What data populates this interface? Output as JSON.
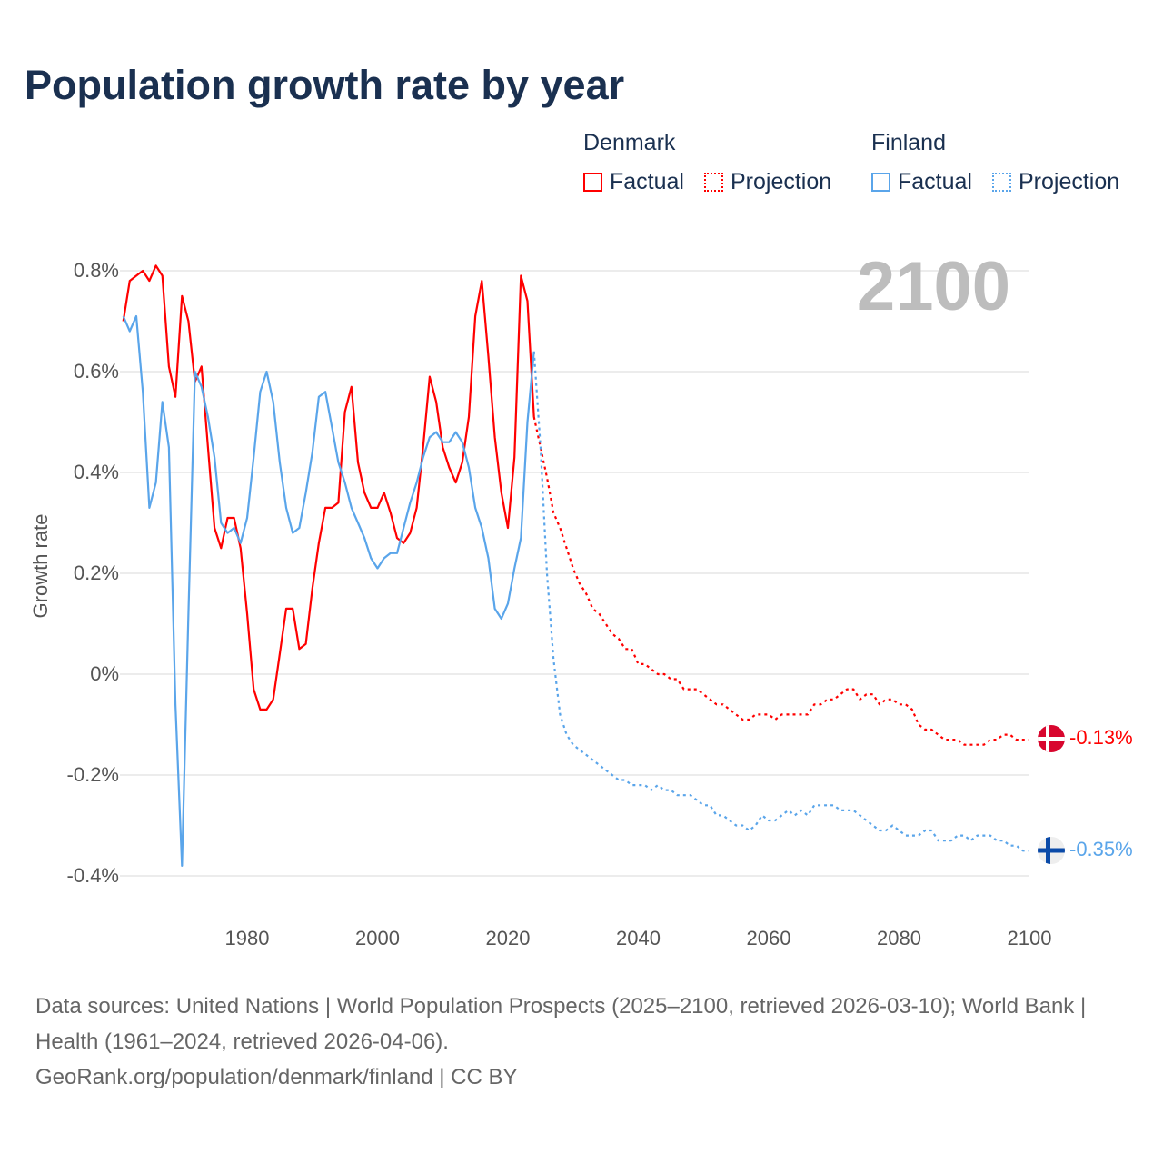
{
  "title": "Population growth rate by year",
  "legend": {
    "groups": [
      {
        "name": "Denmark",
        "factual": "Factual",
        "projection": "Projection",
        "color": "#ff0000"
      },
      {
        "name": "Finland",
        "factual": "Factual",
        "projection": "Projection",
        "color": "#5aa5ea"
      }
    ]
  },
  "current_year": "2100",
  "end_labels": {
    "denmark": "-0.13%",
    "finland": "-0.35%"
  },
  "footer": {
    "sources": "Data sources: United Nations | World Population Prospects (2025–2100, retrieved 2026-03-10); World Bank | Health (1961–2024, retrieved 2026-04-06).",
    "credit": "GeoRank.org/population/denmark/finland | CC BY"
  },
  "chart_data": {
    "type": "line",
    "title": "Population growth rate by year",
    "xlabel": "",
    "ylabel": "Growth rate",
    "xlim": [
      1961,
      2100
    ],
    "ylim": [
      -0.4,
      0.8
    ],
    "x_ticks": [
      "1980",
      "2000",
      "2020",
      "2040",
      "2060",
      "2080",
      "2100"
    ],
    "y_ticks": [
      "0.8%",
      "0.6%",
      "0.4%",
      "0.2%",
      "0%",
      "-0.2%",
      "-0.4%"
    ],
    "grid": true,
    "legend_position": "top-right",
    "series": [
      {
        "name": "Denmark Factual",
        "start_year": 1961,
        "color": "#ff0000",
        "style": "solid",
        "values": [
          0.7,
          0.78,
          0.79,
          0.8,
          0.78,
          0.81,
          0.79,
          0.61,
          0.55,
          0.75,
          0.7,
          0.58,
          0.61,
          0.45,
          0.29,
          0.25,
          0.31,
          0.31,
          0.25,
          0.12,
          -0.03,
          -0.07,
          -0.07,
          -0.05,
          0.04,
          0.13,
          0.13,
          0.05,
          0.06,
          0.17,
          0.26,
          0.33,
          0.33,
          0.34,
          0.52,
          0.57,
          0.42,
          0.36,
          0.33,
          0.33,
          0.36,
          0.32,
          0.27,
          0.26,
          0.28,
          0.33,
          0.45,
          0.59,
          0.54,
          0.45,
          0.41,
          0.38,
          0.42,
          0.51,
          0.71,
          0.78,
          0.63,
          0.47,
          0.36,
          0.29,
          0.43,
          0.79,
          0.74,
          0.51
        ]
      },
      {
        "name": "Finland Factual",
        "start_year": 1961,
        "color": "#5aa5ea",
        "style": "solid",
        "values": [
          0.71,
          0.68,
          0.71,
          0.56,
          0.33,
          0.38,
          0.54,
          0.45,
          -0.06,
          -0.38,
          0.12,
          0.6,
          0.57,
          0.51,
          0.43,
          0.3,
          0.28,
          0.29,
          0.26,
          0.31,
          0.43,
          0.56,
          0.6,
          0.54,
          0.42,
          0.33,
          0.28,
          0.29,
          0.36,
          0.44,
          0.55,
          0.56,
          0.49,
          0.42,
          0.38,
          0.33,
          0.3,
          0.27,
          0.23,
          0.21,
          0.23,
          0.24,
          0.24,
          0.29,
          0.34,
          0.38,
          0.43,
          0.47,
          0.48,
          0.46,
          0.46,
          0.48,
          0.46,
          0.41,
          0.33,
          0.29,
          0.23,
          0.13,
          0.11,
          0.14,
          0.21,
          0.27,
          0.5,
          0.64
        ]
      },
      {
        "name": "Denmark Projection",
        "start_year": 2024,
        "color": "#ff0000",
        "style": "dotted",
        "values": [
          0.51,
          0.45,
          0.39,
          0.32,
          0.29,
          0.25,
          0.21,
          0.18,
          0.16,
          0.13,
          0.12,
          0.1,
          0.08,
          0.07,
          0.05,
          0.05,
          0.02,
          0.02,
          0.01,
          0.0,
          0.0,
          -0.01,
          -0.01,
          -0.03,
          -0.03,
          -0.03,
          -0.04,
          -0.05,
          -0.06,
          -0.06,
          -0.07,
          -0.08,
          -0.09,
          -0.09,
          -0.08,
          -0.08,
          -0.08,
          -0.09,
          -0.08,
          -0.08,
          -0.08,
          -0.08,
          -0.08,
          -0.06,
          -0.06,
          -0.05,
          -0.05,
          -0.04,
          -0.03,
          -0.03,
          -0.05,
          -0.04,
          -0.04,
          -0.06,
          -0.05,
          -0.05,
          -0.06,
          -0.06,
          -0.07,
          -0.1,
          -0.11,
          -0.11,
          -0.12,
          -0.13,
          -0.13,
          -0.13,
          -0.14,
          -0.14,
          -0.14,
          -0.14,
          -0.13,
          -0.13,
          -0.12,
          -0.12,
          -0.13,
          -0.13,
          -0.13
        ]
      },
      {
        "name": "Finland Projection",
        "start_year": 2024,
        "color": "#5aa5ea",
        "style": "dotted",
        "values": [
          0.64,
          0.45,
          0.2,
          0.03,
          -0.08,
          -0.12,
          -0.14,
          -0.15,
          -0.16,
          -0.17,
          -0.18,
          -0.19,
          -0.2,
          -0.21,
          -0.21,
          -0.22,
          -0.22,
          -0.22,
          -0.23,
          -0.22,
          -0.23,
          -0.23,
          -0.24,
          -0.24,
          -0.24,
          -0.25,
          -0.26,
          -0.26,
          -0.28,
          -0.28,
          -0.29,
          -0.3,
          -0.3,
          -0.31,
          -0.3,
          -0.28,
          -0.29,
          -0.29,
          -0.28,
          -0.27,
          -0.28,
          -0.27,
          -0.28,
          -0.26,
          -0.26,
          -0.26,
          -0.26,
          -0.27,
          -0.27,
          -0.27,
          -0.28,
          -0.29,
          -0.3,
          -0.31,
          -0.31,
          -0.3,
          -0.31,
          -0.32,
          -0.32,
          -0.32,
          -0.31,
          -0.31,
          -0.33,
          -0.33,
          -0.33,
          -0.32,
          -0.32,
          -0.33,
          -0.32,
          -0.32,
          -0.32,
          -0.33,
          -0.33,
          -0.34,
          -0.34,
          -0.35,
          -0.35
        ]
      }
    ]
  }
}
